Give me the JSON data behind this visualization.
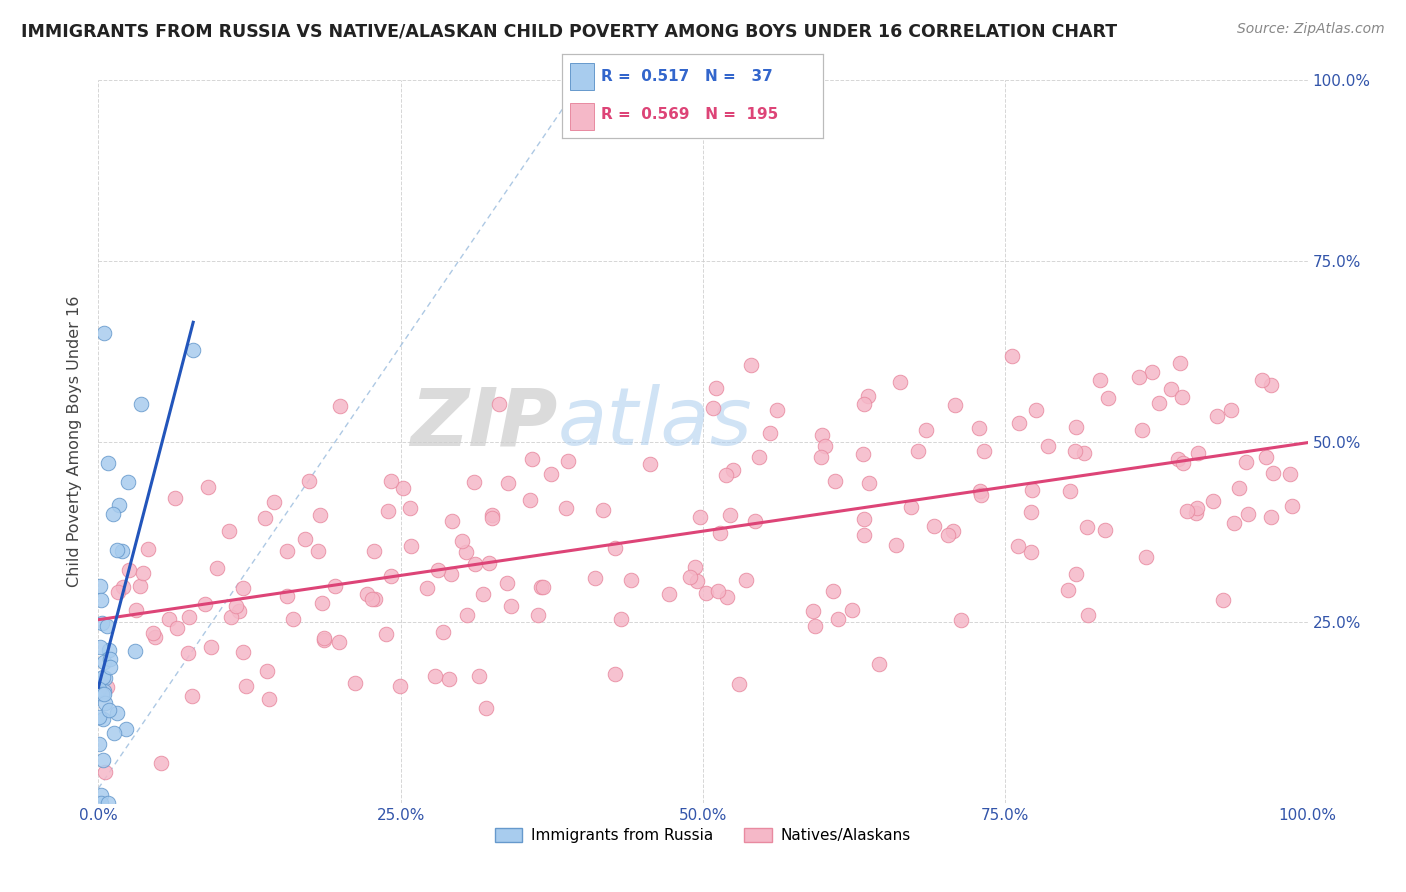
{
  "title": "IMMIGRANTS FROM RUSSIA VS NATIVE/ALASKAN CHILD POVERTY AMONG BOYS UNDER 16 CORRELATION CHART",
  "source": "Source: ZipAtlas.com",
  "ylabel": "Child Poverty Among Boys Under 16",
  "russia_color": "#A8CCEE",
  "russia_edge_color": "#6699CC",
  "native_color": "#F5B8C8",
  "native_edge_color": "#E88AA0",
  "russia_R": 0.517,
  "russia_N": 37,
  "native_R": 0.569,
  "native_N": 195,
  "russia_line_color": "#2255BB",
  "native_line_color": "#DD4477",
  "diag_line_color": "#99BBDD",
  "watermark_zip": "ZIP",
  "watermark_atlas": "atlas",
  "legend_R_russia_color": "#3366CC",
  "legend_R_native_color": "#DD4477"
}
